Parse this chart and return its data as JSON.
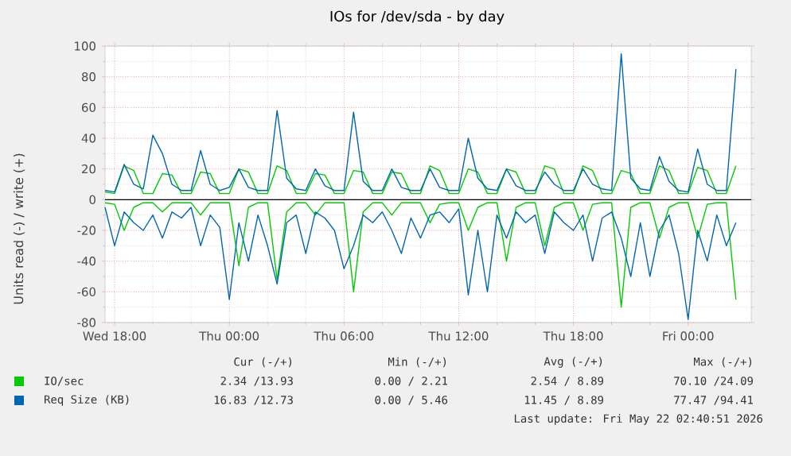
{
  "chart_data": {
    "type": "line",
    "title": "IOs for /dev/sda - by day",
    "ylabel": "Units read (-) / write (+)",
    "x": [
      "2026-05-20T17:30",
      "2026-05-20T18:00",
      "2026-05-20T18:30",
      "2026-05-20T19:00",
      "2026-05-20T19:30",
      "2026-05-20T20:00",
      "2026-05-20T20:30",
      "2026-05-20T21:00",
      "2026-05-20T21:30",
      "2026-05-20T22:00",
      "2026-05-20T22:30",
      "2026-05-20T23:00",
      "2026-05-20T23:30",
      "2026-05-21T00:00",
      "2026-05-21T00:30",
      "2026-05-21T01:00",
      "2026-05-21T01:30",
      "2026-05-21T02:00",
      "2026-05-21T02:30",
      "2026-05-21T03:00",
      "2026-05-21T03:30",
      "2026-05-21T04:00",
      "2026-05-21T04:30",
      "2026-05-21T05:00",
      "2026-05-21T05:30",
      "2026-05-21T06:00",
      "2026-05-21T06:30",
      "2026-05-21T07:00",
      "2026-05-21T07:30",
      "2026-05-21T08:00",
      "2026-05-21T08:30",
      "2026-05-21T09:00",
      "2026-05-21T09:30",
      "2026-05-21T10:00",
      "2026-05-21T10:30",
      "2026-05-21T11:00",
      "2026-05-21T11:30",
      "2026-05-21T12:00",
      "2026-05-21T12:30",
      "2026-05-21T13:00",
      "2026-05-21T13:30",
      "2026-05-21T14:00",
      "2026-05-21T14:30",
      "2026-05-21T15:00",
      "2026-05-21T15:30",
      "2026-05-21T16:00",
      "2026-05-21T16:30",
      "2026-05-21T17:00",
      "2026-05-21T17:30",
      "2026-05-21T18:00",
      "2026-05-21T18:30",
      "2026-05-21T19:00",
      "2026-05-21T19:30",
      "2026-05-21T20:00",
      "2026-05-21T20:30",
      "2026-05-21T21:00",
      "2026-05-21T21:30",
      "2026-05-21T22:00",
      "2026-05-21T22:30",
      "2026-05-21T23:00",
      "2026-05-21T23:30",
      "2026-05-22T00:00",
      "2026-05-22T00:30",
      "2026-05-22T01:00",
      "2026-05-22T01:30",
      "2026-05-22T02:00",
      "2026-05-22T02:30"
    ],
    "series": [
      {
        "name": "IO/sec",
        "color": "#00cc00",
        "values": [
          5,
          4,
          22,
          19,
          4,
          4,
          17,
          16,
          4,
          4,
          18,
          17,
          4,
          4,
          20,
          18,
          4,
          4,
          22,
          19,
          4,
          4,
          17,
          16,
          4,
          4,
          19,
          18,
          4,
          4,
          18,
          17,
          4,
          4,
          22,
          19,
          4,
          4,
          20,
          18,
          4,
          4,
          20,
          18,
          4,
          4,
          22,
          20,
          4,
          4,
          22,
          19,
          4,
          4,
          19,
          17,
          4,
          4,
          22,
          19,
          4,
          4,
          21,
          19,
          4,
          4,
          22
        ]
      },
      {
        "color": "#00cc00",
        "values": [
          -2,
          -3,
          -20,
          -5,
          -2,
          -2,
          -8,
          -2,
          -2,
          -2,
          -10,
          -2,
          -2,
          -2,
          -43,
          -5,
          -2,
          -2,
          -52,
          -8,
          -2,
          -2,
          -10,
          -2,
          -2,
          -2,
          -60,
          -8,
          -2,
          -2,
          -10,
          -2,
          -2,
          -2,
          -15,
          -3,
          -2,
          -2,
          -20,
          -5,
          -2,
          -2,
          -40,
          -5,
          -2,
          -2,
          -30,
          -5,
          -2,
          -2,
          -20,
          -3,
          -2,
          -2,
          -70,
          -5,
          -2,
          -2,
          -25,
          -5,
          -2,
          -2,
          -25,
          -3,
          -2,
          -2,
          -65
        ]
      },
      {
        "name": "Req Size (KB)",
        "color": "#0066b3",
        "values": [
          6,
          5,
          23,
          10,
          7,
          42,
          30,
          10,
          6,
          6,
          32,
          10,
          6,
          8,
          20,
          8,
          6,
          6,
          58,
          14,
          7,
          6,
          20,
          9,
          6,
          6,
          57,
          12,
          6,
          6,
          20,
          8,
          6,
          6,
          20,
          8,
          6,
          6,
          40,
          14,
          7,
          6,
          20,
          9,
          6,
          6,
          18,
          10,
          6,
          6,
          20,
          10,
          7,
          6,
          95,
          14,
          7,
          6,
          28,
          12,
          6,
          5,
          33,
          10,
          6,
          6,
          85
        ]
      },
      {
        "color": "#0066b3",
        "values": [
          -5,
          -30,
          -8,
          -15,
          -20,
          -10,
          -25,
          -8,
          -12,
          -5,
          -30,
          -10,
          -18,
          -65,
          -15,
          -40,
          -10,
          -30,
          -55,
          -15,
          -10,
          -35,
          -8,
          -12,
          -20,
          -45,
          -30,
          -10,
          -15,
          -8,
          -20,
          -35,
          -12,
          -25,
          -10,
          -8,
          -15,
          -6,
          -62,
          -20,
          -60,
          -10,
          -25,
          -8,
          -15,
          -10,
          -35,
          -8,
          -15,
          -20,
          -10,
          -40,
          -12,
          -8,
          -25,
          -50,
          -15,
          -50,
          -20,
          -10,
          -35,
          -78,
          -20,
          -40,
          -10,
          -30,
          -15
        ]
      }
    ],
    "xlim": [
      "2026-05-20T17:30",
      "2026-05-22T03:18"
    ],
    "xticks": [
      {
        "value": "2026-05-20T18:00",
        "label": "Wed 18:00"
      },
      {
        "value": "2026-05-21T00:00",
        "label": "Thu 00:00"
      },
      {
        "value": "2026-05-21T06:00",
        "label": "Thu 06:00"
      },
      {
        "value": "2026-05-21T12:00",
        "label": "Thu 12:00"
      },
      {
        "value": "2026-05-21T18:00",
        "label": "Thu 18:00"
      },
      {
        "value": "2026-05-22T00:00",
        "label": "Fri 00:00"
      }
    ],
    "ylim": [
      -80,
      100
    ],
    "yticks": [
      -80,
      -60,
      -40,
      -20,
      0,
      20,
      40,
      60,
      80,
      100
    ],
    "grid": true,
    "legend": "bottom",
    "ref_lines": [
      {
        "axis": "y",
        "value": 0,
        "color": "#000000"
      }
    ],
    "annotations": [
      "Cur (-/+)",
      "Min (-/+)",
      "Avg (-/+)",
      "Max (-/+)",
      "2.34 /13.93",
      "0.00 / 2.21",
      "2.54 / 8.89",
      "70.10 /24.09",
      "16.83 /12.73",
      "0.00 / 5.46",
      "11.45 / 8.89",
      "77.47 /94.41",
      "Last update: Fri May 22 02:40:51 2026"
    ]
  }
}
